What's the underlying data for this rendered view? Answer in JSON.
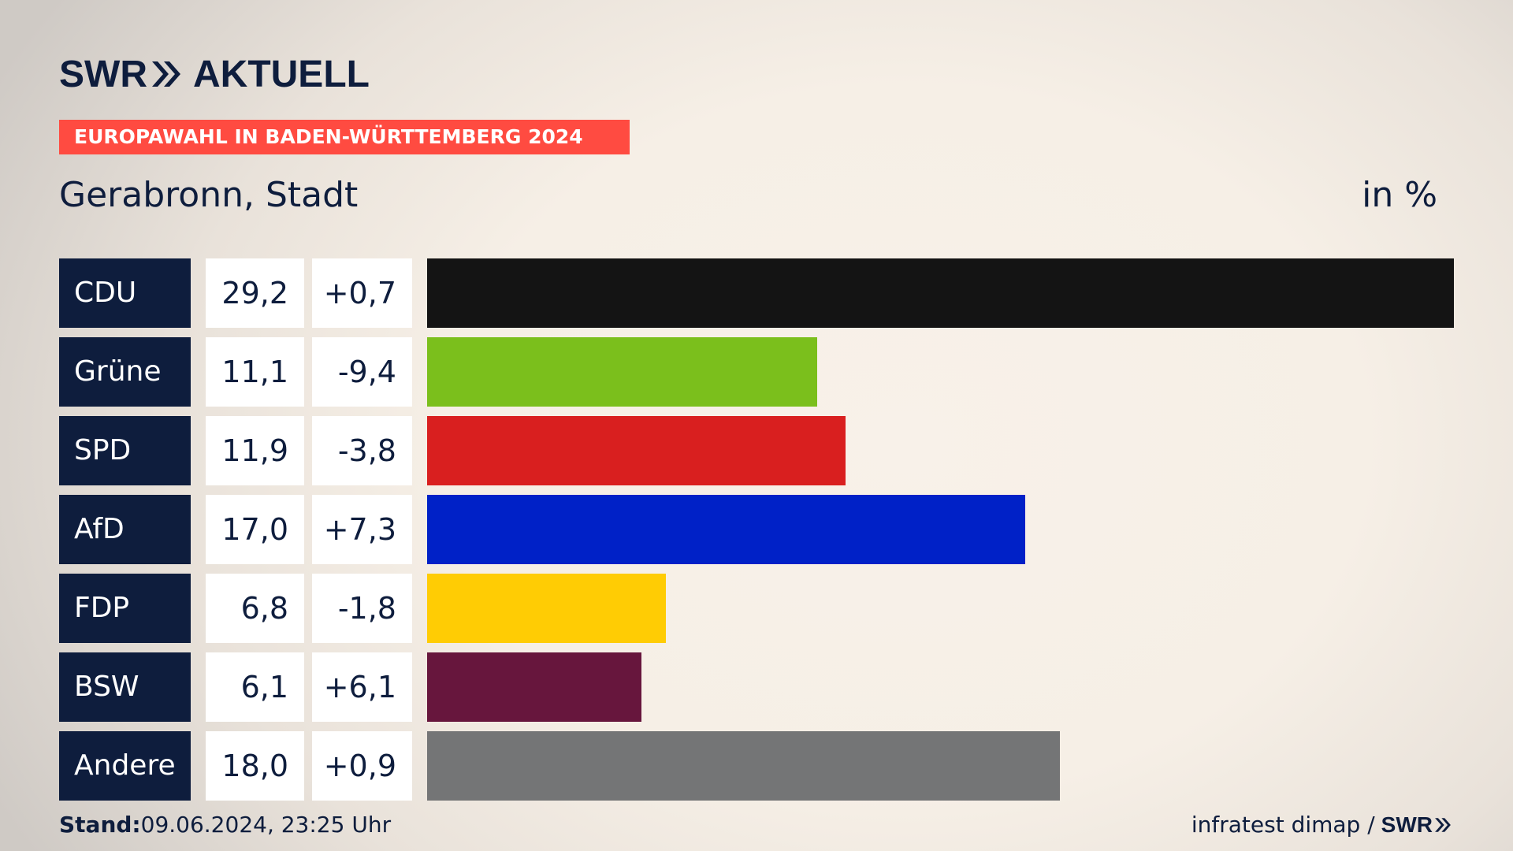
{
  "brand": {
    "swr": "SWR",
    "aktuell": "AKTUELL"
  },
  "banner": "EUROPAWAHL IN BADEN-WÜRTTEMBERG 2024",
  "subtitle": "Gerabronn, Stadt",
  "unit": "in %",
  "footer": {
    "stand_label": "Stand:",
    "stand_value": "09.06.2024, 23:25 Uhr",
    "source": "infratest dimap /",
    "source_logo": "SWR"
  },
  "chart_data": {
    "type": "bar",
    "orientation": "horizontal",
    "categories": [
      "CDU",
      "Grüne",
      "SPD",
      "AfD",
      "FDP",
      "BSW",
      "Andere"
    ],
    "values": [
      29.2,
      11.1,
      11.9,
      17.0,
      6.8,
      6.1,
      18.0
    ],
    "value_labels": [
      "29,2",
      "11,1",
      "11,9",
      "17,0",
      "6,8",
      "6,1",
      "18,0"
    ],
    "changes": [
      0.7,
      -9.4,
      -3.8,
      7.3,
      -1.8,
      6.1,
      0.9
    ],
    "change_labels": [
      "+0,7",
      "-9,4",
      "-3,8",
      "+7,3",
      "-1,8",
      "+6,1",
      "+0,9"
    ],
    "colors": [
      "#141414",
      "#7bbf1c",
      "#d91f1f",
      "#0021c7",
      "#ffcc04",
      "#67163d",
      "#747576"
    ],
    "xlim": [
      0,
      29.2
    ],
    "grid": false
  }
}
